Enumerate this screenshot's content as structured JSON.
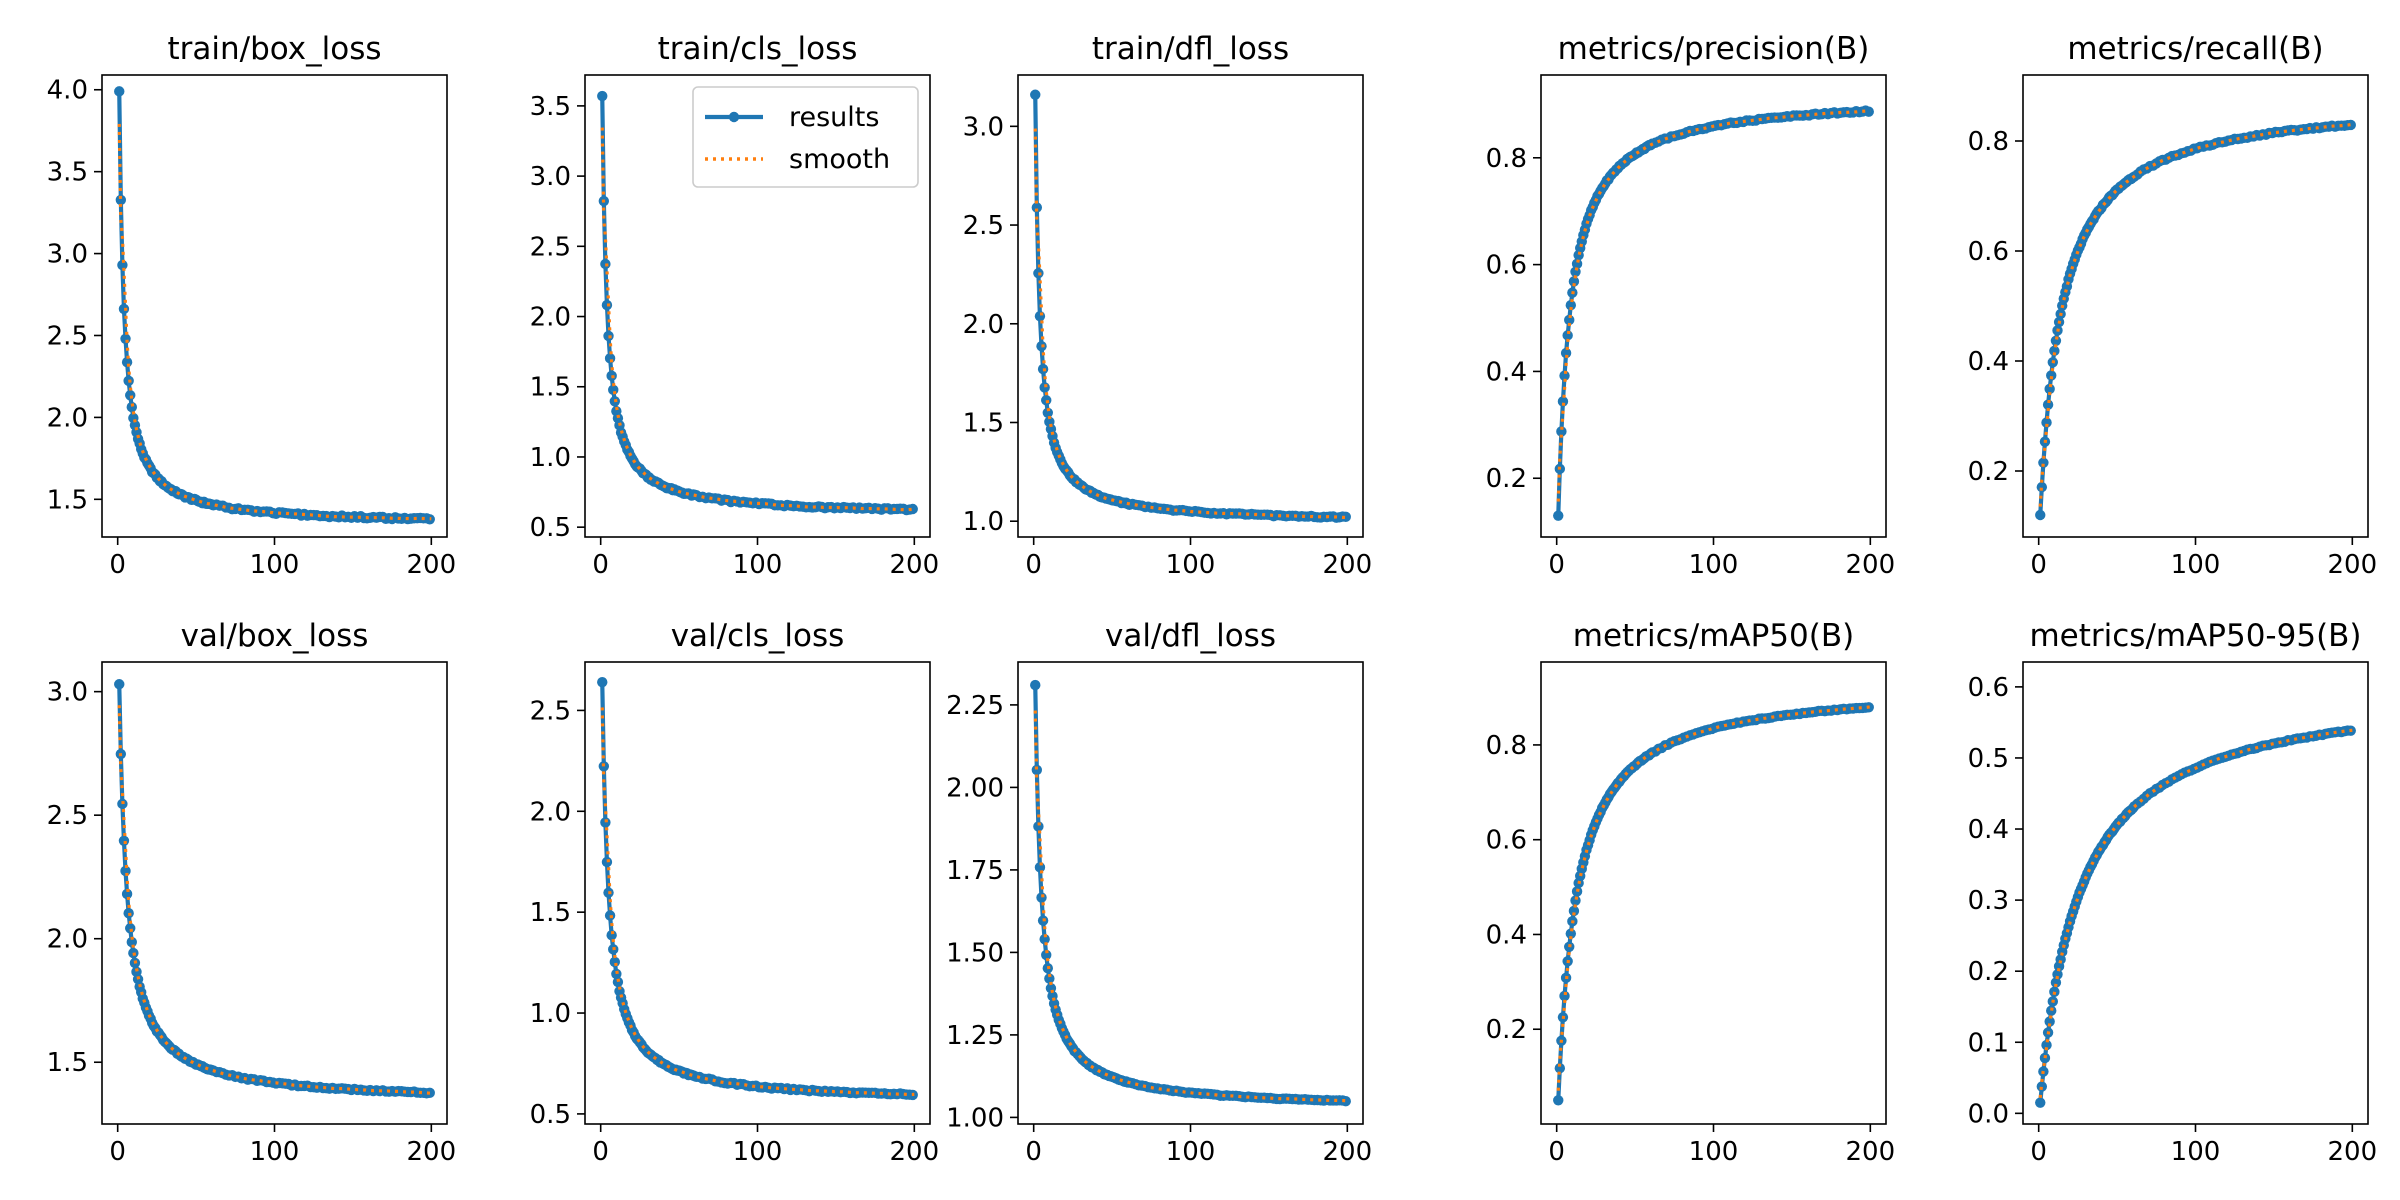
{
  "colors": {
    "results": "#1f77b4",
    "smooth": "#ff7f0e"
  },
  "legend": {
    "results_label": "results",
    "smooth_label": "smooth"
  },
  "chart_data": [
    {
      "type": "line",
      "title": "train/box_loss",
      "xlim": [
        -10,
        210
      ],
      "ylim": [
        1.27,
        4.09
      ],
      "xticks": [
        0,
        100,
        200
      ],
      "yticks": [
        1.5,
        2.0,
        2.5,
        3.0,
        3.5,
        4.0
      ],
      "ytick_labels": [
        "1.5",
        "2.0",
        "2.5",
        "3.0",
        "3.5",
        "4.0"
      ],
      "curve": {
        "start": 3.99,
        "end": 1.34,
        "k": 3.0,
        "noise": 0.004
      },
      "legend": false
    },
    {
      "type": "line",
      "title": "train/cls_loss",
      "xlim": [
        -10,
        210
      ],
      "ylim": [
        0.43,
        3.72
      ],
      "xticks": [
        0,
        100,
        200
      ],
      "yticks": [
        0.5,
        1.0,
        1.5,
        2.0,
        2.5,
        3.0,
        3.5
      ],
      "ytick_labels": [
        "0.5",
        "1.0",
        "1.5",
        "2.0",
        "2.5",
        "3.0",
        "3.5"
      ],
      "curve": {
        "start": 3.57,
        "end": 0.58,
        "k": 3.0,
        "noise": 0.004
      },
      "legend": true,
      "legend_loc": "upper right"
    },
    {
      "type": "line",
      "title": "train/dfl_loss",
      "xlim": [
        -10,
        210
      ],
      "ylim": [
        0.92,
        3.26
      ],
      "xticks": [
        0,
        100,
        200
      ],
      "yticks": [
        1.0,
        1.5,
        2.0,
        2.5,
        3.0
      ],
      "ytick_labels": [
        "1.0",
        "1.5",
        "2.0",
        "2.5",
        "3.0"
      ],
      "curve": {
        "start": 3.16,
        "end": 0.99,
        "k": 2.8,
        "noise": 0.003
      },
      "legend": false
    },
    {
      "type": "line",
      "title": "metrics/precision(B)",
      "xlim": [
        -10,
        210
      ],
      "ylim": [
        0.09,
        0.955
      ],
      "xticks": [
        0,
        100,
        200
      ],
      "yticks": [
        0.2,
        0.4,
        0.6,
        0.8
      ],
      "ytick_labels": [
        "0.2",
        "0.4",
        "0.6",
        "0.8"
      ],
      "curve": {
        "start": 0.13,
        "end": 0.918,
        "k": 8.0,
        "noise": 0.003
      },
      "legend": false
    },
    {
      "type": "line",
      "title": "metrics/recall(B)",
      "xlim": [
        -10,
        210
      ],
      "ylim": [
        0.08,
        0.92
      ],
      "xticks": [
        0,
        100,
        200
      ],
      "yticks": [
        0.2,
        0.4,
        0.6,
        0.8
      ],
      "ytick_labels": [
        "0.2",
        "0.4",
        "0.6",
        "0.8"
      ],
      "curve": {
        "start": 0.12,
        "end": 0.88,
        "k": 14.0,
        "noise": 0.003
      },
      "legend": false
    },
    {
      "type": "line",
      "title": "val/box_loss",
      "xlim": [
        -10,
        210
      ],
      "ylim": [
        1.25,
        3.12
      ],
      "xticks": [
        0,
        100,
        200
      ],
      "yticks": [
        1.5,
        2.0,
        2.5,
        3.0
      ],
      "ytick_labels": [
        "1.5",
        "2.0",
        "2.5",
        "3.0"
      ],
      "curve": {
        "start": 3.03,
        "end": 1.335,
        "k": 5.0,
        "noise": 0.003
      },
      "legend": false
    },
    {
      "type": "line",
      "title": "val/cls_loss",
      "xlim": [
        -10,
        210
      ],
      "ylim": [
        0.45,
        2.74
      ],
      "xticks": [
        0,
        100,
        200
      ],
      "yticks": [
        0.5,
        1.0,
        1.5,
        2.0,
        2.5
      ],
      "ytick_labels": [
        "0.5",
        "1.0",
        "1.5",
        "2.0",
        "2.5"
      ],
      "curve": {
        "start": 2.64,
        "end": 0.555,
        "k": 4.0,
        "noise": 0.003
      },
      "legend": false
    },
    {
      "type": "line",
      "title": "val/dfl_loss",
      "xlim": [
        -10,
        210
      ],
      "ylim": [
        0.98,
        2.38
      ],
      "xticks": [
        0,
        100,
        200
      ],
      "yticks": [
        1.0,
        1.25,
        1.5,
        1.75,
        2.0,
        2.25
      ],
      "ytick_labels": [
        "1.00",
        "1.25",
        "1.50",
        "1.75",
        "2.00",
        "2.25"
      ],
      "curve": {
        "start": 2.31,
        "end": 1.025,
        "k": 4.0,
        "noise": 0.002
      },
      "legend": false
    },
    {
      "type": "line",
      "title": "metrics/mAP50(B)",
      "xlim": [
        -10,
        210
      ],
      "ylim": [
        0.0,
        0.975
      ],
      "xticks": [
        0,
        100,
        200
      ],
      "yticks": [
        0.2,
        0.4,
        0.6,
        0.8
      ],
      "ytick_labels": [
        "0.2",
        "0.4",
        "0.6",
        "0.8"
      ],
      "curve": {
        "start": 0.05,
        "end": 0.93,
        "k": 12.0,
        "noise": 0.002
      },
      "legend": false
    },
    {
      "type": "line",
      "title": "metrics/mAP50-95(B)",
      "xlim": [
        -10,
        210
      ],
      "ylim": [
        -0.015,
        0.635
      ],
      "xticks": [
        0,
        100,
        200
      ],
      "yticks": [
        0.0,
        0.1,
        0.2,
        0.3,
        0.4,
        0.5,
        0.6
      ],
      "ytick_labels": [
        "0.0",
        "0.1",
        "0.2",
        "0.3",
        "0.4",
        "0.5",
        "0.6"
      ],
      "curve": {
        "start": 0.015,
        "end": 0.605,
        "k": 25.0,
        "noise": 0.002
      },
      "legend": false
    }
  ]
}
